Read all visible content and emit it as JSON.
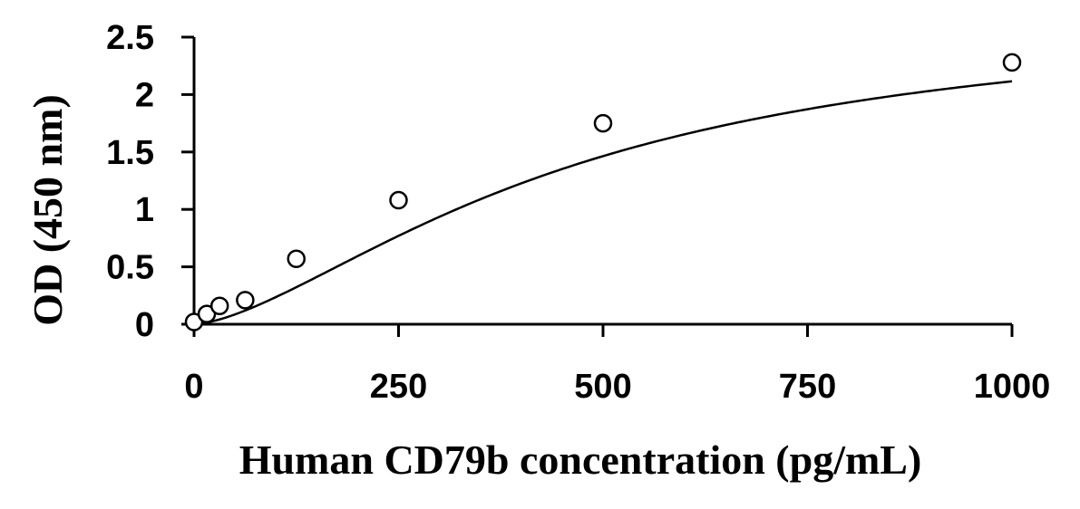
{
  "chart_data": {
    "type": "scatter",
    "title": "",
    "xlabel": "Human CD79b concentration (pg/mL)",
    "ylabel": "OD (450 nm)",
    "xlim": [
      0,
      1000
    ],
    "ylim": [
      0,
      2.5
    ],
    "x_ticks": [
      0,
      250,
      500,
      750,
      1000
    ],
    "x_tick_labels": [
      "0",
      "250",
      "500",
      "750",
      "1000"
    ],
    "y_ticks": [
      0,
      0.5,
      1,
      1.5,
      2,
      2.5
    ],
    "y_tick_labels": [
      "0",
      "0.5",
      "1",
      "1.5",
      "2",
      "2.5"
    ],
    "grid": false,
    "legend": "none",
    "series": [
      {
        "x": [
          0,
          15.6,
          31.25,
          62.5,
          125,
          250,
          500,
          1000
        ],
        "y": [
          0.02,
          0.09,
          0.16,
          0.21,
          0.57,
          1.08,
          1.75,
          2.28
        ]
      }
    ],
    "fit_curve": "smooth"
  }
}
